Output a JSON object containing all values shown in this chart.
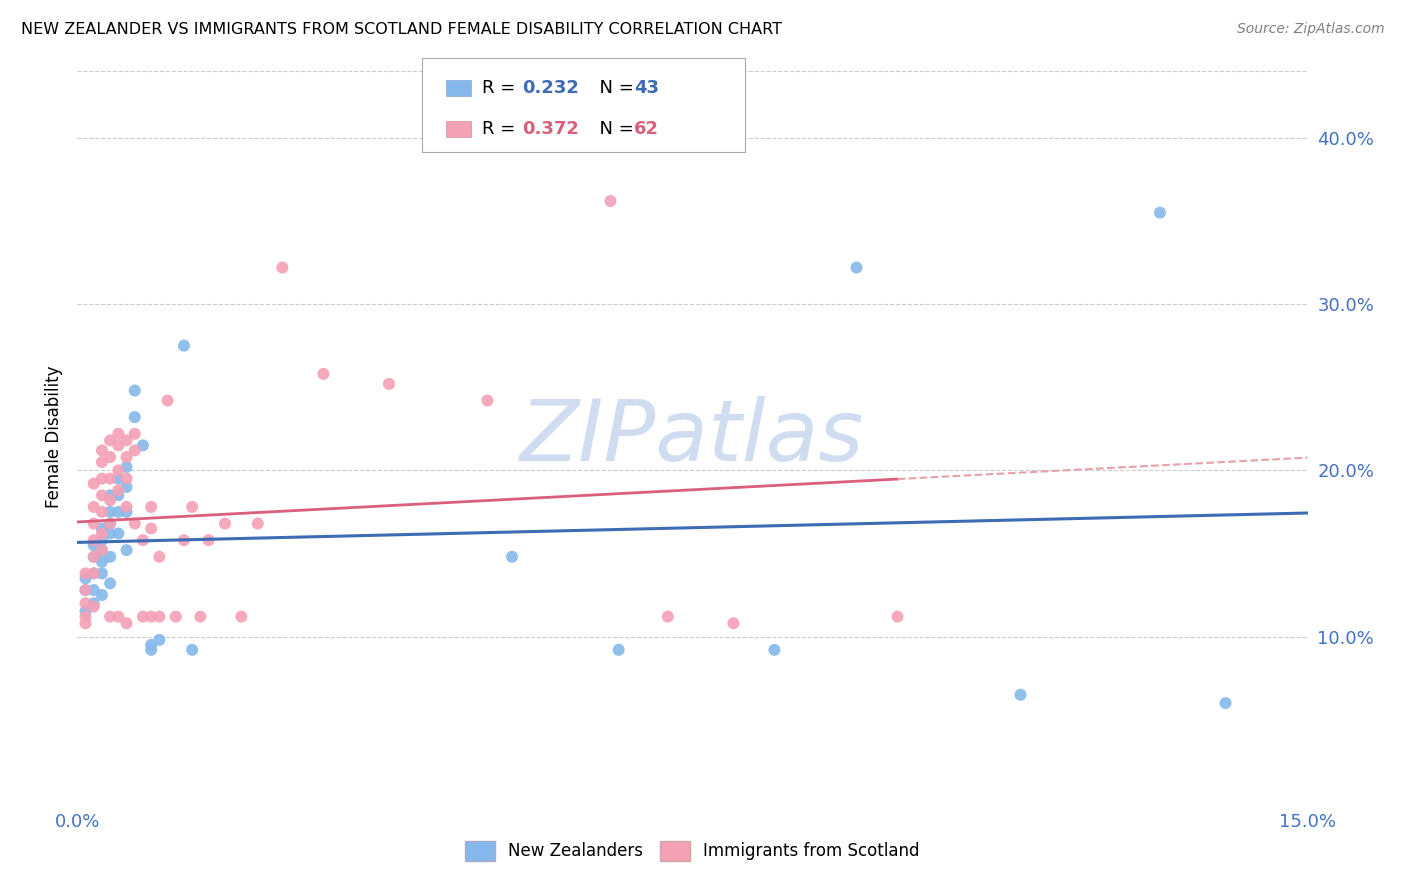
{
  "title": "NEW ZEALANDER VS IMMIGRANTS FROM SCOTLAND FEMALE DISABILITY CORRELATION CHART",
  "source": "Source: ZipAtlas.com",
  "ylabel": "Female Disability",
  "xlim": [
    0.0,
    0.15
  ],
  "ylim": [
    0.0,
    0.44
  ],
  "xticks": [
    0.0,
    0.03,
    0.06,
    0.09,
    0.12,
    0.15
  ],
  "xticklabels": [
    "0.0%",
    "",
    "",
    "",
    "",
    "15.0%"
  ],
  "yticks": [
    0.1,
    0.2,
    0.3,
    0.4
  ],
  "yticklabels": [
    "10.0%",
    "20.0%",
    "30.0%",
    "40.0%"
  ],
  "series1_label": "New Zealanders",
  "series1_color": "#85B8EA",
  "series1_R": "0.232",
  "series1_N": "43",
  "series2_label": "Immigrants from Scotland",
  "series2_color": "#F4A0B5",
  "series2_R": "0.372",
  "series2_N": "62",
  "trend1_color": "#3E6BB5",
  "trend2_color": "#D95F7A",
  "trend2_dashed_color": "#E8A0AA",
  "watermark": "ZIPatlas",
  "watermark_color": "#D0DCF0",
  "background_color": "#FFFFFF",
  "grid_color": "#CCCCCC",
  "axis_label_color": "#4472C4",
  "nz_x": [
    0.001,
    0.001,
    0.001,
    0.002,
    0.002,
    0.002,
    0.002,
    0.002,
    0.003,
    0.003,
    0.003,
    0.003,
    0.003,
    0.003,
    0.004,
    0.004,
    0.004,
    0.004,
    0.004,
    0.004,
    0.005,
    0.005,
    0.005,
    0.005,
    0.006,
    0.006,
    0.006,
    0.006,
    0.007,
    0.007,
    0.008,
    0.009,
    0.009,
    0.01,
    0.013,
    0.014,
    0.053,
    0.066,
    0.085,
    0.095,
    0.115,
    0.132,
    0.14
  ],
  "nz_y": [
    0.135,
    0.128,
    0.115,
    0.155,
    0.148,
    0.138,
    0.128,
    0.12,
    0.165,
    0.158,
    0.152,
    0.145,
    0.138,
    0.125,
    0.185,
    0.175,
    0.168,
    0.162,
    0.148,
    0.132,
    0.195,
    0.185,
    0.175,
    0.162,
    0.202,
    0.19,
    0.175,
    0.152,
    0.248,
    0.232,
    0.215,
    0.095,
    0.092,
    0.098,
    0.275,
    0.092,
    0.148,
    0.092,
    0.092,
    0.322,
    0.065,
    0.355,
    0.06
  ],
  "sc_x": [
    0.001,
    0.001,
    0.001,
    0.001,
    0.001,
    0.002,
    0.002,
    0.002,
    0.002,
    0.002,
    0.002,
    0.002,
    0.003,
    0.003,
    0.003,
    0.003,
    0.003,
    0.003,
    0.003,
    0.004,
    0.004,
    0.004,
    0.004,
    0.004,
    0.004,
    0.005,
    0.005,
    0.005,
    0.005,
    0.005,
    0.006,
    0.006,
    0.006,
    0.006,
    0.006,
    0.007,
    0.007,
    0.007,
    0.008,
    0.008,
    0.009,
    0.009,
    0.009,
    0.01,
    0.01,
    0.011,
    0.012,
    0.013,
    0.014,
    0.015,
    0.016,
    0.018,
    0.02,
    0.022,
    0.025,
    0.03,
    0.038,
    0.05,
    0.065,
    0.072,
    0.08,
    0.1
  ],
  "sc_y": [
    0.138,
    0.128,
    0.12,
    0.112,
    0.108,
    0.192,
    0.178,
    0.168,
    0.158,
    0.148,
    0.138,
    0.118,
    0.212,
    0.205,
    0.195,
    0.185,
    0.175,
    0.162,
    0.152,
    0.218,
    0.208,
    0.195,
    0.182,
    0.168,
    0.112,
    0.222,
    0.215,
    0.2,
    0.188,
    0.112,
    0.218,
    0.208,
    0.195,
    0.178,
    0.108,
    0.222,
    0.212,
    0.168,
    0.158,
    0.112,
    0.178,
    0.165,
    0.112,
    0.148,
    0.112,
    0.242,
    0.112,
    0.158,
    0.178,
    0.112,
    0.158,
    0.168,
    0.112,
    0.168,
    0.322,
    0.258,
    0.252,
    0.242,
    0.362,
    0.112,
    0.108,
    0.112
  ]
}
